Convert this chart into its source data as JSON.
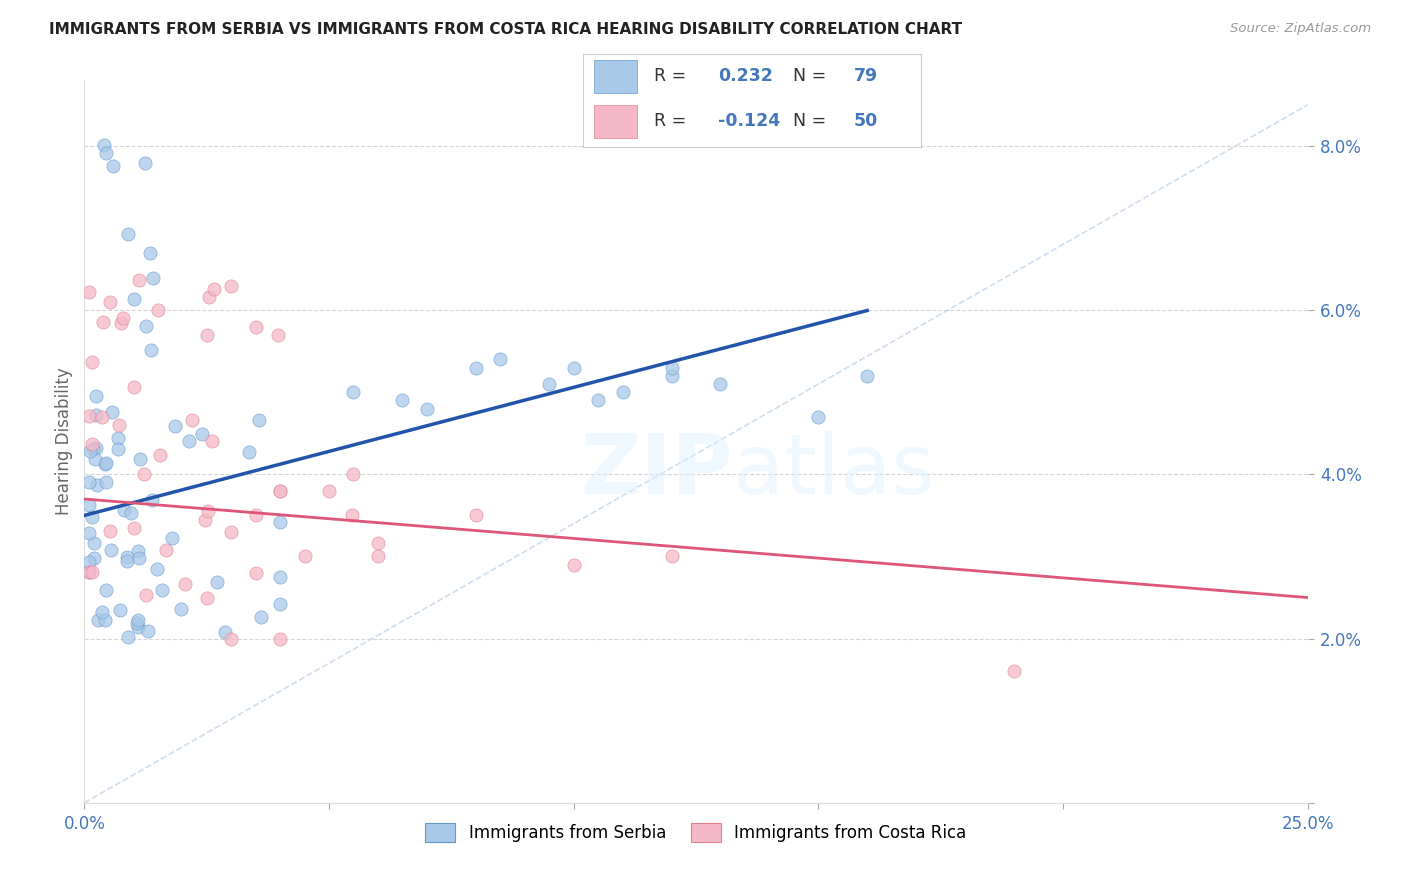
{
  "title": "IMMIGRANTS FROM SERBIA VS IMMIGRANTS FROM COSTA RICA HEARING DISABILITY CORRELATION CHART",
  "source": "Source: ZipAtlas.com",
  "ylabel": "Hearing Disability",
  "xlim": [
    0.0,
    0.25
  ],
  "ylim": [
    0.0,
    0.088
  ],
  "xticks": [
    0.0,
    0.05,
    0.1,
    0.15,
    0.2,
    0.25
  ],
  "xticklabels": [
    "0.0%",
    "",
    "",
    "",
    "",
    "25.0%"
  ],
  "yticks": [
    0.0,
    0.02,
    0.04,
    0.06,
    0.08
  ],
  "yticklabels": [
    "",
    "2.0%",
    "4.0%",
    "6.0%",
    "8.0%"
  ],
  "serbia_color": "#a8c8e8",
  "serbia_edge_color": "#6699cc",
  "costa_rica_color": "#f5b8c8",
  "costa_rica_edge_color": "#e08090",
  "serbia_line_color": "#2255aa",
  "costa_rica_line_color": "#dd5577",
  "diagonal_color": "#b8d0e8",
  "R_serbia": 0.232,
  "N_serbia": 79,
  "R_costa_rica": -0.124,
  "N_costa_rica": 50,
  "tick_color": "#4477bb",
  "grid_color": "#cccccc",
  "watermark_color": "#ddeeff",
  "legend_serbia_label": "Immigrants from Serbia",
  "legend_costa_rica_label": "Immigrants from Costa Rica",
  "serbia_seed": 42,
  "costa_rica_seed": 99
}
